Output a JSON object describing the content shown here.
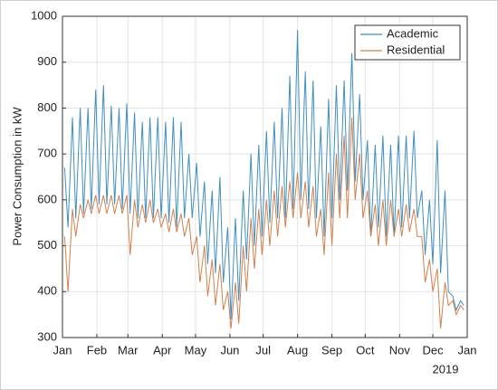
{
  "chart_data": {
    "type": "line",
    "ylabel": "Power Consumption in kW",
    "annotation": "2019",
    "x": [
      2,
      5,
      9,
      12,
      16,
      19,
      23,
      26,
      30,
      33,
      37,
      40,
      44,
      47,
      51,
      54,
      58,
      61,
      65,
      68,
      72,
      75,
      79,
      82,
      86,
      89,
      93,
      96,
      100,
      103,
      107,
      110,
      114,
      117,
      121,
      124,
      128,
      131,
      135,
      138,
      142,
      145,
      149,
      152,
      156,
      159,
      163,
      166,
      170,
      173,
      177,
      180,
      184,
      187,
      191,
      194,
      198,
      201,
      205,
      208,
      212,
      215,
      219,
      222,
      226,
      229,
      233,
      236,
      240,
      243,
      247,
      250,
      254,
      257,
      261,
      264,
      268,
      271,
      275,
      278,
      282,
      285,
      289,
      292,
      296,
      299,
      303,
      306,
      310,
      313,
      317,
      320,
      324,
      327,
      331,
      334,
      338,
      341,
      345,
      348,
      352,
      355,
      359,
      362
    ],
    "series": [
      {
        "name": "Academic",
        "color": "#3f8fbf",
        "values": [
          670,
          540,
          780,
          560,
          800,
          570,
          800,
          580,
          840,
          590,
          850,
          590,
          805,
          590,
          800,
          580,
          810,
          570,
          790,
          560,
          770,
          560,
          780,
          560,
          780,
          560,
          770,
          550,
          780,
          540,
          770,
          560,
          700,
          560,
          680,
          520,
          640,
          460,
          620,
          440,
          650,
          420,
          540,
          340,
          560,
          380,
          620,
          470,
          700,
          500,
          720,
          520,
          750,
          550,
          770,
          560,
          800,
          560,
          870,
          580,
          970,
          600,
          880,
          580,
          860,
          560,
          760,
          520,
          820,
          560,
          850,
          600,
          860,
          620,
          920,
          640,
          830,
          600,
          730,
          520,
          720,
          540,
          740,
          520,
          720,
          520,
          740,
          540,
          740,
          560,
          750,
          560,
          620,
          480,
          600,
          460,
          730,
          440,
          620,
          400,
          390,
          360,
          380,
          370
        ]
      },
      {
        "name": "Residential",
        "color": "#d2804c",
        "values": [
          520,
          400,
          580,
          520,
          590,
          560,
          600,
          570,
          610,
          570,
          610,
          570,
          610,
          570,
          610,
          570,
          610,
          480,
          600,
          540,
          590,
          550,
          600,
          550,
          580,
          540,
          570,
          530,
          580,
          530,
          570,
          520,
          560,
          480,
          520,
          420,
          500,
          390,
          470,
          370,
          460,
          360,
          400,
          320,
          420,
          330,
          500,
          400,
          560,
          450,
          580,
          480,
          600,
          500,
          620,
          520,
          630,
          540,
          640,
          560,
          660,
          560,
          640,
          540,
          630,
          520,
          580,
          480,
          660,
          500,
          700,
          560,
          740,
          560,
          780,
          600,
          700,
          560,
          620,
          520,
          590,
          500,
          600,
          500,
          600,
          520,
          580,
          520,
          590,
          530,
          580,
          520,
          520,
          420,
          470,
          400,
          450,
          320,
          420,
          370,
          380,
          350,
          370,
          360
        ]
      }
    ],
    "xlim": [
      0,
      365
    ],
    "xticks": [
      {
        "value": 0,
        "label": "Jan"
      },
      {
        "value": 31,
        "label": "Feb"
      },
      {
        "value": 59,
        "label": "Mar"
      },
      {
        "value": 90,
        "label": "Apr"
      },
      {
        "value": 120,
        "label": "May"
      },
      {
        "value": 151,
        "label": "Jun"
      },
      {
        "value": 181,
        "label": "Jul"
      },
      {
        "value": 212,
        "label": "Aug"
      },
      {
        "value": 243,
        "label": "Sep"
      },
      {
        "value": 273,
        "label": "Oct"
      },
      {
        "value": 304,
        "label": "Nov"
      },
      {
        "value": 334,
        "label": "Dec"
      },
      {
        "value": 365,
        "label": "Jan"
      }
    ],
    "ylim": [
      300,
      1000
    ],
    "yticks": [
      300,
      400,
      500,
      600,
      700,
      800,
      900,
      1000
    ],
    "grid": true,
    "legend": "upper right"
  }
}
